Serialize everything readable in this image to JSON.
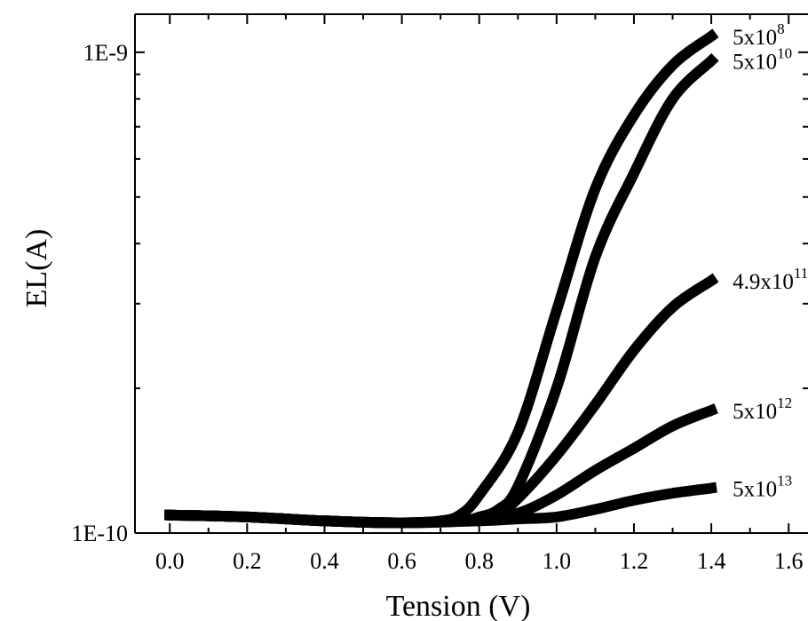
{
  "chart_data": {
    "type": "line",
    "xlabel": "Tension (V)",
    "ylabel": "EL(A)",
    "xlim": [
      -0.09,
      1.65
    ],
    "ylim": [
      1e-10,
      1.2e-09
    ],
    "yscale": "log",
    "x_ticks": [
      "0.0",
      "0.2",
      "0.4",
      "0.6",
      "0.8",
      "1.0",
      "1.2",
      "1.4",
      "1.6"
    ],
    "y_ticks": [
      "1E-10",
      "1E-9"
    ],
    "grid": false,
    "line_color": "#000000",
    "series": [
      {
        "name": "5x10^8",
        "label_base": "5x10",
        "label_exp": "8",
        "x": [
          0.0,
          0.2,
          0.4,
          0.6,
          0.7,
          0.75,
          0.8,
          0.9,
          1.0,
          1.1,
          1.2,
          1.3,
          1.4
        ],
        "y": [
          1.09e-10,
          1.08e-10,
          1.06e-10,
          1.05e-10,
          1.06e-10,
          1.09e-10,
          1.2e-10,
          1.62e-10,
          2.9e-10,
          5.2e-10,
          7.4e-10,
          9.4e-10,
          1.08e-09
        ]
      },
      {
        "name": "5x10^10",
        "label_base": "5x10",
        "label_exp": "10",
        "x": [
          0.0,
          0.2,
          0.4,
          0.6,
          0.75,
          0.8,
          0.85,
          0.9,
          1.0,
          1.1,
          1.2,
          1.3,
          1.4
        ],
        "y": [
          1.09e-10,
          1.08e-10,
          1.06e-10,
          1.05e-10,
          1.06e-10,
          1.08e-10,
          1.12e-10,
          1.25e-10,
          2e-10,
          3.75e-10,
          5.6e-10,
          8e-10,
          9.6e-10
        ]
      },
      {
        "name": "4.9x10^11",
        "label_base": "4.9x10",
        "label_exp": "11",
        "x": [
          0.0,
          0.2,
          0.4,
          0.6,
          0.8,
          0.85,
          0.9,
          1.0,
          1.1,
          1.2,
          1.3,
          1.4
        ],
        "y": [
          1.09e-10,
          1.08e-10,
          1.06e-10,
          1.05e-10,
          1.07e-10,
          1.1e-10,
          1.18e-10,
          1.45e-10,
          1.85e-10,
          2.4e-10,
          2.95e-10,
          3.35e-10
        ]
      },
      {
        "name": "5x10^12",
        "label_base": "5x10",
        "label_exp": "12",
        "x": [
          0.0,
          0.2,
          0.4,
          0.6,
          0.8,
          0.9,
          1.0,
          1.1,
          1.2,
          1.3,
          1.4
        ],
        "y": [
          1.09e-10,
          1.08e-10,
          1.06e-10,
          1.05e-10,
          1.07e-10,
          1.1e-10,
          1.2e-10,
          1.35e-10,
          1.5e-10,
          1.67e-10,
          1.8e-10
        ]
      },
      {
        "name": "5x10^13",
        "label_base": "5x10",
        "label_exp": "13",
        "x": [
          0.0,
          0.2,
          0.4,
          0.6,
          0.8,
          0.9,
          1.0,
          1.1,
          1.2,
          1.3,
          1.4
        ],
        "y": [
          1.09e-10,
          1.08e-10,
          1.06e-10,
          1.05e-10,
          1.06e-10,
          1.07e-10,
          1.08e-10,
          1.12e-10,
          1.17e-10,
          1.21e-10,
          1.24e-10
        ]
      }
    ]
  }
}
